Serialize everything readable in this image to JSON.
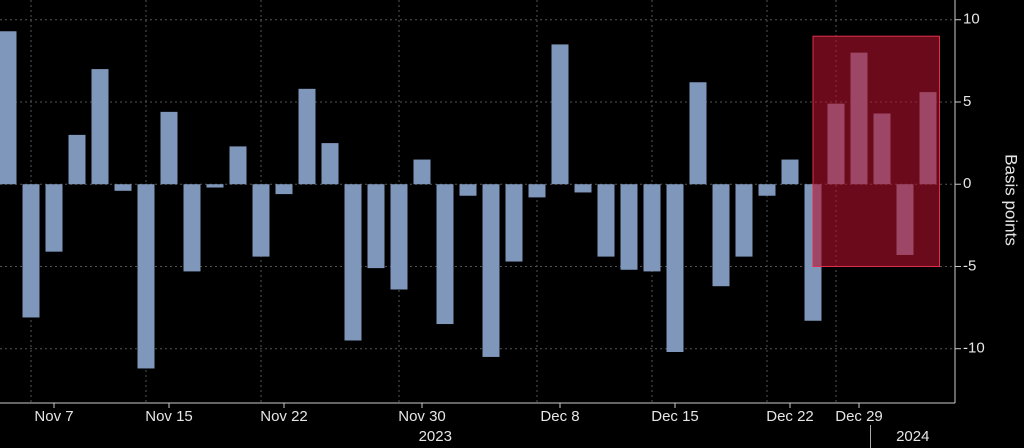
{
  "chart_data": {
    "type": "bar",
    "y_label": "Basis points",
    "categories": [
      null,
      null,
      "Nov 7",
      null,
      null,
      null,
      null,
      "Nov 15",
      null,
      null,
      null,
      null,
      "Nov 22",
      null,
      null,
      null,
      null,
      null,
      "Nov 30",
      null,
      null,
      null,
      null,
      null,
      "Dec 8",
      null,
      null,
      null,
      null,
      "Dec 15",
      null,
      null,
      null,
      null,
      "Dec 22",
      null,
      null,
      "Dec 29",
      null,
      null,
      null
    ],
    "values": [
      9.3,
      -8.1,
      -4.1,
      3.0,
      7.0,
      -0.4,
      -11.2,
      4.4,
      -5.3,
      -0.2,
      2.3,
      -4.4,
      -0.6,
      5.8,
      2.5,
      -9.5,
      -5.1,
      -6.4,
      1.5,
      -8.5,
      -0.7,
      -10.5,
      -4.7,
      -0.8,
      8.5,
      -0.5,
      -4.4,
      -5.2,
      -5.3,
      -10.2,
      6.2,
      -6.2,
      -4.4,
      -0.7,
      1.5,
      -8.3,
      4.9,
      8.0,
      4.3,
      -4.3,
      5.6
    ],
    "color": "#7f97bb",
    "years": [
      {
        "label": "2023",
        "from": 0,
        "to": 37
      },
      {
        "label": "2024",
        "from": 38,
        "to": 40
      }
    ],
    "highlight": {
      "from": 36,
      "to": 40,
      "ylim": [
        -5,
        9
      ],
      "color": "#b0102c"
    },
    "ylim": [
      -13.3,
      11.2
    ],
    "yticks": [
      -10,
      -5,
      0,
      5,
      10
    ],
    "grid": true
  }
}
